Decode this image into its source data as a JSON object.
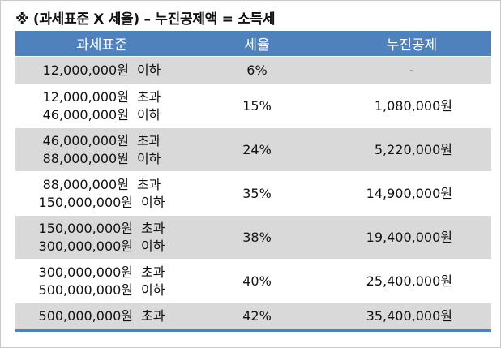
{
  "title": "※ (과세표준 X 세율) – 누진공제액 = 소득세",
  "headers": {
    "base": "과세표준",
    "rate": "세율",
    "deduction": "누진공제"
  },
  "rows": [
    {
      "lines": [
        {
          "amount": "12,000,000원",
          "cond": "이하"
        }
      ],
      "rate": "6%",
      "deduction": "-"
    },
    {
      "lines": [
        {
          "amount": "12,000,000원",
          "cond": "초과"
        },
        {
          "amount": "46,000,000원",
          "cond": "이하"
        }
      ],
      "rate": "15%",
      "deduction": "1,080,000원"
    },
    {
      "lines": [
        {
          "amount": "46,000,000원",
          "cond": "초과"
        },
        {
          "amount": "88,000,000원",
          "cond": "이하"
        }
      ],
      "rate": "24%",
      "deduction": "5,220,000원"
    },
    {
      "lines": [
        {
          "amount": "88,000,000원",
          "cond": "초과"
        },
        {
          "amount": "150,000,000원",
          "cond": "이하"
        }
      ],
      "rate": "35%",
      "deduction": "14,900,000원"
    },
    {
      "lines": [
        {
          "amount": "150,000,000원",
          "cond": "초과"
        },
        {
          "amount": "300,000,000원",
          "cond": "이하"
        }
      ],
      "rate": "38%",
      "deduction": "19,400,000원"
    },
    {
      "lines": [
        {
          "amount": "300,000,000원",
          "cond": "초과"
        },
        {
          "amount": "500,000,000원",
          "cond": "이하"
        }
      ],
      "rate": "40%",
      "deduction": "25,400,000원"
    },
    {
      "lines": [
        {
          "amount": "500,000,000원",
          "cond": "초과"
        }
      ],
      "rate": "42%",
      "deduction": "35,400,000원"
    }
  ],
  "colors": {
    "header_bg": "#4f81bd",
    "header_text": "#ffffff",
    "row_shade": "#d9d9d9",
    "row_plain": "#ffffff"
  }
}
